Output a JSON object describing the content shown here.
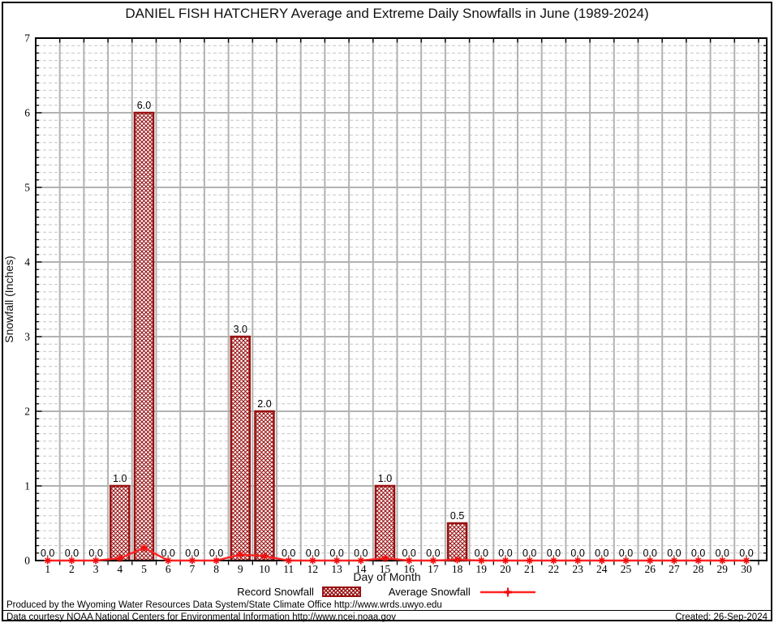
{
  "title": "DANIEL FISH HATCHERY Average and Extreme Daily Snowfalls in June (1989-2024)",
  "chart_data": {
    "type": "bar",
    "title": "DANIEL FISH HATCHERY Average and Extreme Daily Snowfalls in June (1989-2024)",
    "xlabel": "Day of Month",
    "ylabel": "Snowfall (Inches)",
    "ylim": [
      0,
      7
    ],
    "yticks": [
      0,
      1,
      2,
      3,
      4,
      5,
      6,
      7
    ],
    "y_minor_step": 0.1,
    "grid": {
      "major": "solid",
      "minor": "dashed"
    },
    "legend_position": "bottom",
    "categories": [
      1,
      2,
      3,
      4,
      5,
      6,
      7,
      8,
      9,
      10,
      11,
      12,
      13,
      14,
      15,
      16,
      17,
      18,
      19,
      20,
      21,
      22,
      23,
      24,
      25,
      26,
      27,
      28,
      29,
      30
    ],
    "series": [
      {
        "name": "Record Snowfall",
        "type": "bar",
        "values": [
          0,
          0,
          0,
          1,
          6,
          0,
          0,
          0,
          3,
          2,
          0,
          0,
          0,
          0,
          1,
          0,
          0,
          0.5,
          0,
          0,
          0,
          0,
          0,
          0,
          0,
          0,
          0,
          0,
          0,
          0
        ],
        "labels": [
          "0.0",
          "0.0",
          "0.0",
          "1.0",
          "6.0",
          "0.0",
          "0.0",
          "0.0",
          "3.0",
          "2.0",
          "0.0",
          "0.0",
          "0.0",
          "0.0",
          "1.0",
          "0.0",
          "0.0",
          "0.5",
          "0.0",
          "0.0",
          "0.0",
          "0.0",
          "0.0",
          "0.0",
          "0.0",
          "0.0",
          "0.0",
          "0.0",
          "0.0",
          "0.0"
        ]
      },
      {
        "name": "Average Snowfall",
        "type": "line",
        "values": [
          0,
          0,
          0,
          0.03,
          0.17,
          0,
          0,
          0,
          0.08,
          0.06,
          0,
          0,
          0,
          0,
          0.03,
          0,
          0,
          0.01,
          0,
          0,
          0,
          0,
          0,
          0,
          0,
          0,
          0,
          0,
          0,
          0
        ]
      }
    ],
    "colors": {
      "bar_border": "#991111",
      "bar_hatch": "#991111",
      "avg_line": "#ff2222",
      "avg_marker": "#ee1111",
      "grid_major": "#b2b2b2",
      "grid_minor": "#c6c6c6",
      "axis": "#000000"
    }
  },
  "legend": {
    "record_label": "Record Snowfall",
    "average_label": "Average Snowfall"
  },
  "footer": {
    "produced_by": "Produced by the Wyoming Water Resources Data System/State Climate Office http://www.wrds.uwyo.edu",
    "data_courtesy": "Data courtesy NOAA National Centers for Environmental Information http://www.ncei.noaa.gov",
    "created": "Created: 26-Sep-2024"
  }
}
